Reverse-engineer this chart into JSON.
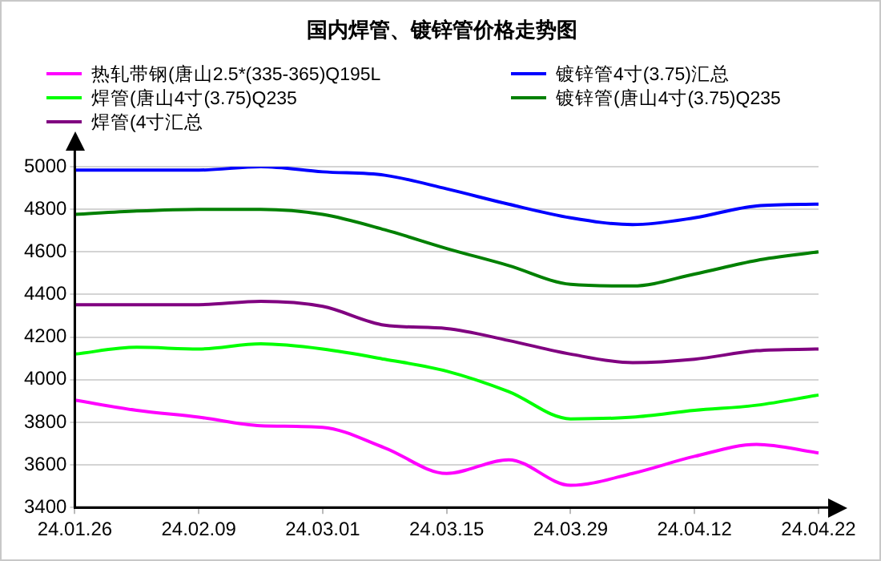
{
  "chart_data": {
    "type": "line",
    "title": "国内焊管、镀锌管价格走势图",
    "categories": [
      "24.01.26",
      null,
      "24.02.09",
      null,
      "24.03.01",
      null,
      "24.03.15",
      null,
      "24.03.29",
      null,
      "24.04.12",
      null,
      "24.04.22"
    ],
    "series": [
      {
        "name": "热轧带钢(唐山2.5*(335-365)Q195L",
        "color": "#ff00ff",
        "values": [
          3904,
          3856,
          3824,
          3784,
          3776,
          3680,
          3560,
          3624,
          3504,
          3560,
          3640,
          3696,
          3656
        ]
      },
      {
        "name": "镀锌管4寸(3.75)汇总",
        "color": "#0000ff",
        "values": [
          4984,
          4984,
          4984,
          5000,
          4976,
          4960,
          4896,
          4824,
          4760,
          4728,
          4760,
          4816,
          4824
        ]
      },
      {
        "name": "焊管(唐山4寸(3.75)Q235",
        "color": "#00ff00",
        "values": [
          4120,
          4152,
          4144,
          4168,
          4144,
          4096,
          4040,
          3944,
          3816,
          3824,
          3856,
          3880,
          3928
        ]
      },
      {
        "name": "镀锌管(唐山4寸(3.75)Q235",
        "color": "#008000",
        "values": [
          4776,
          4792,
          4800,
          4800,
          4776,
          4704,
          4616,
          4536,
          4448,
          4440,
          4496,
          4560,
          4600
        ]
      },
      {
        "name": "焊管(4寸汇总",
        "color": "#800080",
        "values": [
          4352,
          4352,
          4352,
          4368,
          4344,
          4256,
          4240,
          4184,
          4120,
          4080,
          4096,
          4136,
          4144
        ]
      }
    ],
    "ylim": [
      3400,
      5000
    ],
    "yticks": [
      3400,
      3600,
      3800,
      4000,
      4200,
      4400,
      4600,
      4800,
      5000
    ],
    "grid": "y",
    "legend": "top",
    "marker": "none",
    "line_style": "solid"
  }
}
